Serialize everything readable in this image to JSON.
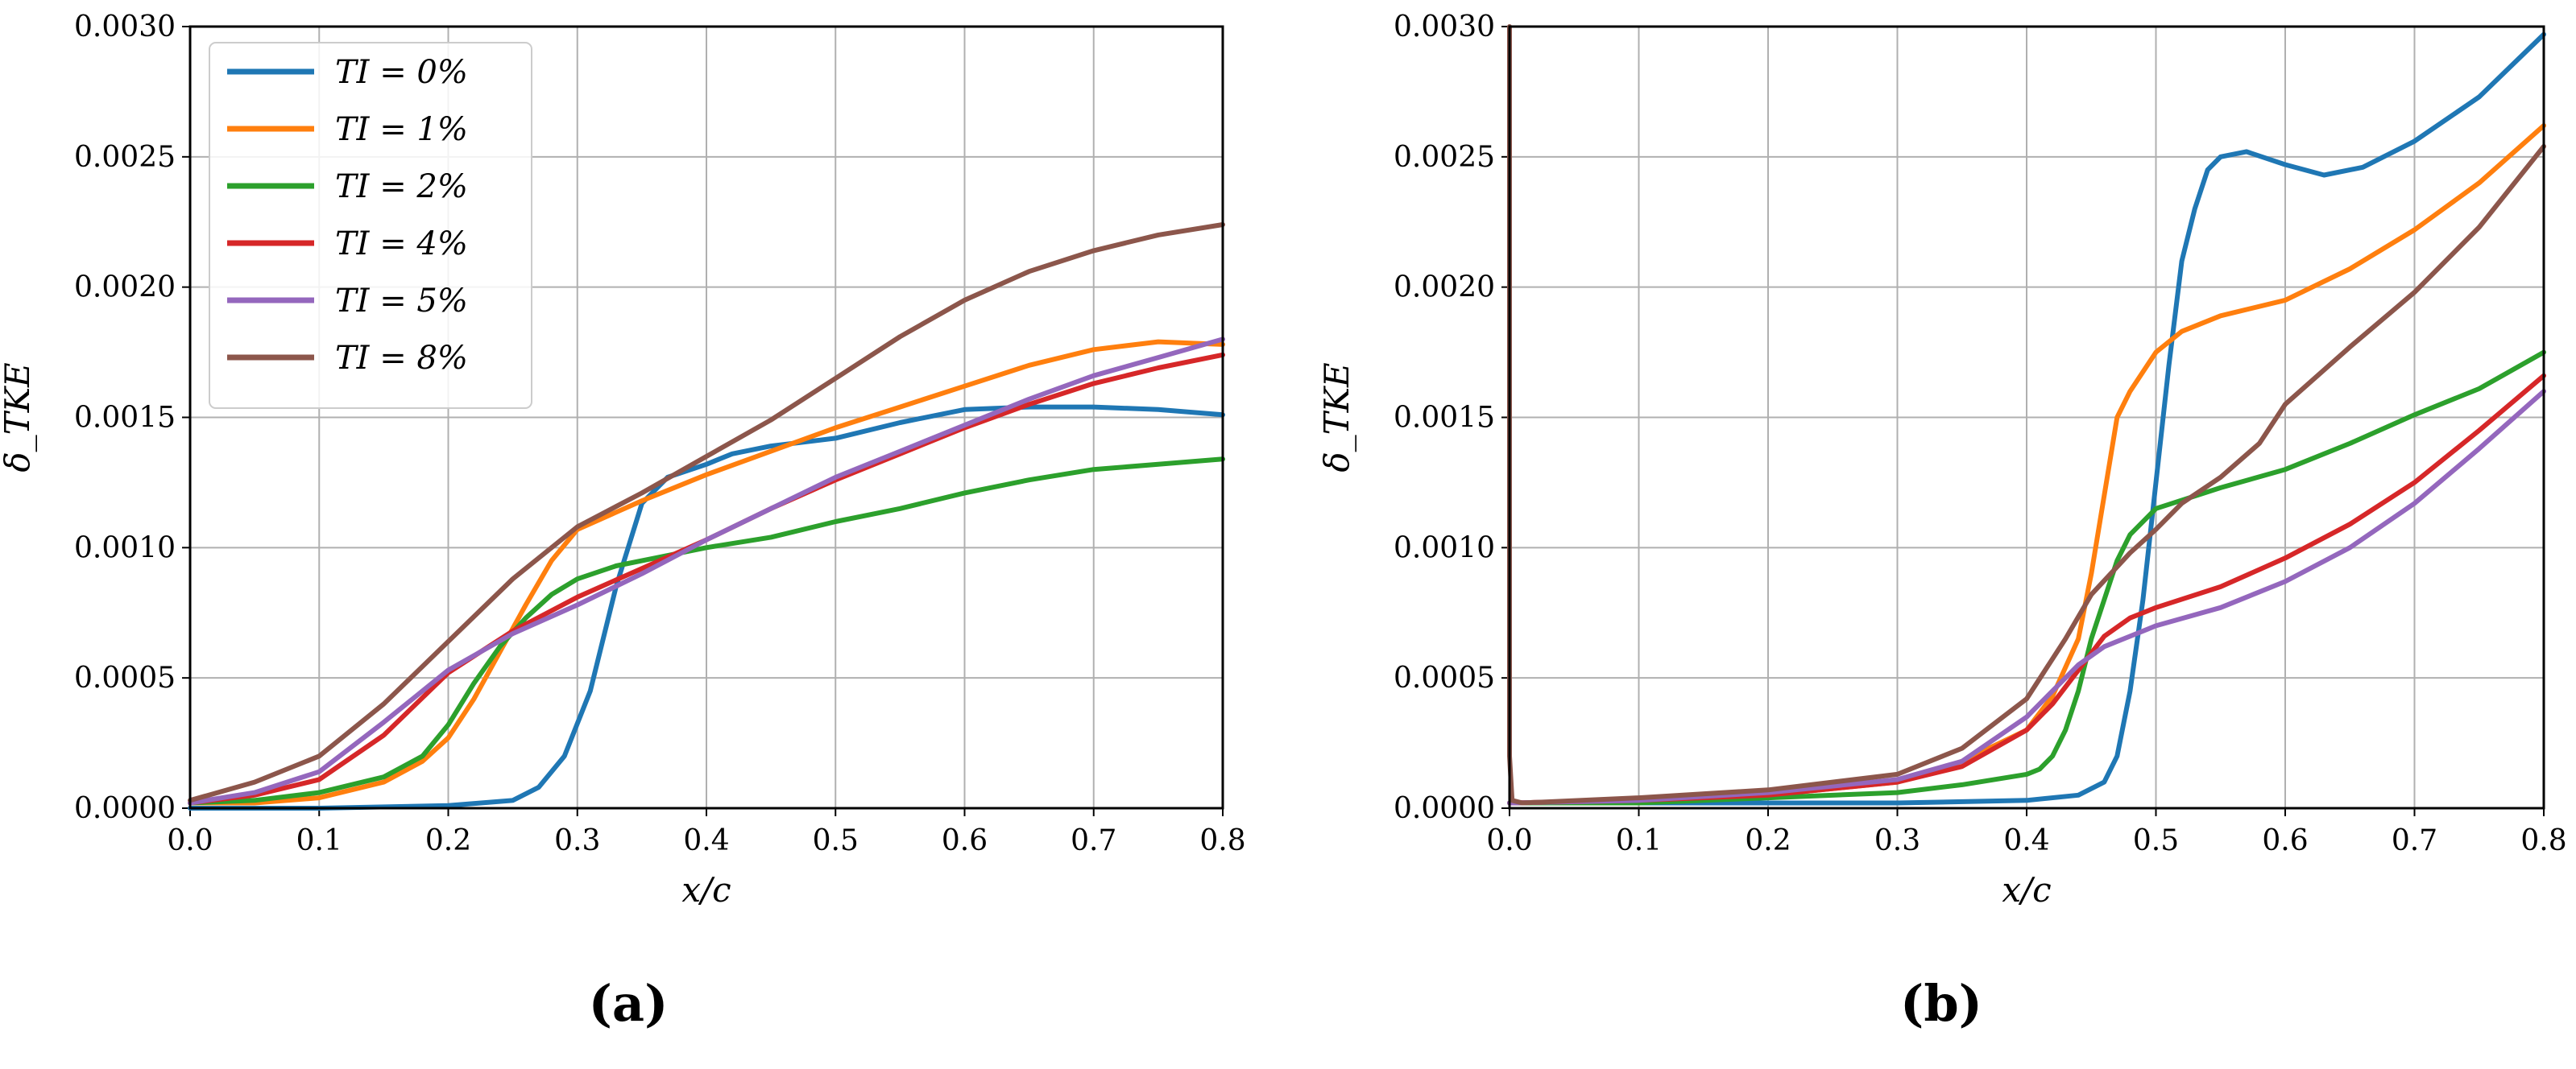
{
  "chart_data": [
    {
      "type": "line",
      "caption": "(a)",
      "xlabel": "x/c",
      "ylabel": "δ_TKE",
      "xlim": [
        0.0,
        0.8
      ],
      "ylim": [
        0.0,
        0.003
      ],
      "xticks": [
        "0.0",
        "0.1",
        "0.2",
        "0.3",
        "0.4",
        "0.5",
        "0.6",
        "0.7",
        "0.8"
      ],
      "yticks": [
        "0.0000",
        "0.0005",
        "0.0010",
        "0.0015",
        "0.0020",
        "0.0025",
        "0.0030"
      ],
      "grid": true,
      "legend": "top-left",
      "series": [
        {
          "name": "TI = 0%",
          "color": "#1f77b4",
          "x": [
            0.0,
            0.1,
            0.2,
            0.25,
            0.27,
            0.29,
            0.31,
            0.33,
            0.35,
            0.37,
            0.4,
            0.42,
            0.45,
            0.5,
            0.55,
            0.6,
            0.65,
            0.7,
            0.75,
            0.8
          ],
          "y": [
            0.0,
            0.0,
            1e-05,
            3e-05,
            8e-05,
            0.0002,
            0.00045,
            0.00085,
            0.00117,
            0.00127,
            0.00132,
            0.00136,
            0.00139,
            0.00142,
            0.00148,
            0.00153,
            0.00154,
            0.00154,
            0.00153,
            0.00151
          ]
        },
        {
          "name": "TI = 1%",
          "color": "#ff7f0e",
          "x": [
            0.0,
            0.05,
            0.1,
            0.15,
            0.18,
            0.2,
            0.22,
            0.24,
            0.26,
            0.28,
            0.3,
            0.35,
            0.4,
            0.45,
            0.5,
            0.55,
            0.6,
            0.65,
            0.7,
            0.75,
            0.8
          ],
          "y": [
            2e-05,
            2e-05,
            4e-05,
            0.0001,
            0.00018,
            0.00027,
            0.00042,
            0.0006,
            0.00078,
            0.00095,
            0.00107,
            0.00118,
            0.00128,
            0.00137,
            0.00146,
            0.00154,
            0.00162,
            0.0017,
            0.00176,
            0.00179,
            0.00178
          ]
        },
        {
          "name": "TI = 2%",
          "color": "#2ca02c",
          "x": [
            0.0,
            0.05,
            0.1,
            0.15,
            0.18,
            0.2,
            0.22,
            0.24,
            0.26,
            0.28,
            0.3,
            0.33,
            0.36,
            0.4,
            0.45,
            0.5,
            0.55,
            0.6,
            0.65,
            0.7,
            0.75,
            0.8
          ],
          "y": [
            2e-05,
            3e-05,
            6e-05,
            0.00012,
            0.0002,
            0.00032,
            0.00048,
            0.00062,
            0.00073,
            0.00082,
            0.00088,
            0.00093,
            0.00096,
            0.001,
            0.00104,
            0.0011,
            0.00115,
            0.00121,
            0.00126,
            0.0013,
            0.00132,
            0.00134
          ]
        },
        {
          "name": "TI = 4%",
          "color": "#d62728",
          "x": [
            0.0,
            0.05,
            0.1,
            0.15,
            0.2,
            0.25,
            0.3,
            0.35,
            0.4,
            0.45,
            0.5,
            0.55,
            0.6,
            0.65,
            0.7,
            0.75,
            0.8
          ],
          "y": [
            2e-05,
            5e-05,
            0.00011,
            0.00028,
            0.00052,
            0.00068,
            0.00081,
            0.00092,
            0.00103,
            0.00115,
            0.00126,
            0.00136,
            0.00146,
            0.00155,
            0.00163,
            0.00169,
            0.00174
          ]
        },
        {
          "name": "TI = 5%",
          "color": "#9467bd",
          "x": [
            0.0,
            0.05,
            0.1,
            0.15,
            0.2,
            0.25,
            0.3,
            0.35,
            0.4,
            0.45,
            0.5,
            0.55,
            0.6,
            0.65,
            0.7,
            0.75,
            0.8
          ],
          "y": [
            2e-05,
            6e-05,
            0.00014,
            0.00033,
            0.00053,
            0.00067,
            0.00078,
            0.0009,
            0.00103,
            0.00115,
            0.00127,
            0.00137,
            0.00147,
            0.00157,
            0.00166,
            0.00173,
            0.0018
          ]
        },
        {
          "name": "TI = 8%",
          "color": "#8c564b",
          "x": [
            0.0,
            0.05,
            0.1,
            0.15,
            0.2,
            0.25,
            0.3,
            0.35,
            0.4,
            0.45,
            0.5,
            0.55,
            0.6,
            0.65,
            0.7,
            0.75,
            0.8
          ],
          "y": [
            3e-05,
            0.0001,
            0.0002,
            0.0004,
            0.00064,
            0.00088,
            0.00108,
            0.00121,
            0.00135,
            0.00149,
            0.00165,
            0.00181,
            0.00195,
            0.00206,
            0.00214,
            0.0022,
            0.00224
          ]
        }
      ]
    },
    {
      "type": "line",
      "caption": "(b)",
      "xlabel": "x/c",
      "ylabel": "δ_TKE",
      "xlim": [
        0.0,
        0.8
      ],
      "ylim": [
        0.0,
        0.003
      ],
      "xticks": [
        "0.0",
        "0.1",
        "0.2",
        "0.3",
        "0.4",
        "0.5",
        "0.6",
        "0.7",
        "0.8"
      ],
      "yticks": [
        "0.0000",
        "0.0005",
        "0.0010",
        "0.0015",
        "0.0020",
        "0.0025",
        "0.0030"
      ],
      "grid": true,
      "legend": "none",
      "series": [
        {
          "name": "TI = 0%",
          "color": "#1f77b4",
          "x": [
            0.0,
            0.1,
            0.2,
            0.3,
            0.4,
            0.44,
            0.46,
            0.47,
            0.48,
            0.49,
            0.5,
            0.51,
            0.52,
            0.53,
            0.54,
            0.55,
            0.57,
            0.6,
            0.63,
            0.66,
            0.7,
            0.75,
            0.8
          ],
          "y": [
            2e-05,
            2e-05,
            2e-05,
            2e-05,
            3e-05,
            5e-05,
            0.0001,
            0.0002,
            0.00045,
            0.0008,
            0.00125,
            0.0017,
            0.0021,
            0.0023,
            0.00245,
            0.0025,
            0.00252,
            0.00247,
            0.00243,
            0.00246,
            0.00256,
            0.00273,
            0.00297
          ]
        },
        {
          "name": "TI = 1%",
          "color": "#ff7f0e",
          "x": [
            0.0,
            0.1,
            0.2,
            0.3,
            0.35,
            0.4,
            0.42,
            0.44,
            0.45,
            0.46,
            0.47,
            0.48,
            0.5,
            0.52,
            0.55,
            0.6,
            0.65,
            0.7,
            0.75,
            0.8
          ],
          "y": [
            2e-05,
            3e-05,
            5e-05,
            0.0001,
            0.00018,
            0.0003,
            0.00043,
            0.00065,
            0.0009,
            0.0012,
            0.0015,
            0.0016,
            0.00175,
            0.00183,
            0.00189,
            0.00195,
            0.00207,
            0.00222,
            0.0024,
            0.00262
          ]
        },
        {
          "name": "TI = 2%",
          "color": "#2ca02c",
          "x": [
            0.0,
            0.1,
            0.2,
            0.3,
            0.35,
            0.4,
            0.41,
            0.42,
            0.43,
            0.44,
            0.45,
            0.46,
            0.47,
            0.48,
            0.5,
            0.55,
            0.6,
            0.65,
            0.7,
            0.75,
            0.8
          ],
          "y": [
            2e-05,
            2e-05,
            4e-05,
            6e-05,
            9e-05,
            0.00013,
            0.00015,
            0.0002,
            0.0003,
            0.00045,
            0.00065,
            0.0008,
            0.00095,
            0.00105,
            0.00115,
            0.00123,
            0.0013,
            0.0014,
            0.00151,
            0.00161,
            0.00175
          ]
        },
        {
          "name": "TI = 4%",
          "color": "#d62728",
          "x": [
            0.0,
            0.1,
            0.2,
            0.3,
            0.35,
            0.4,
            0.42,
            0.44,
            0.46,
            0.48,
            0.5,
            0.55,
            0.6,
            0.65,
            0.7,
            0.75,
            0.8
          ],
          "y": [
            2e-05,
            3e-05,
            5e-05,
            0.0001,
            0.00016,
            0.0003,
            0.0004,
            0.00053,
            0.00066,
            0.00073,
            0.00077,
            0.00085,
            0.00096,
            0.00109,
            0.00125,
            0.00145,
            0.00166
          ]
        },
        {
          "name": "TI = 5%",
          "color": "#9467bd",
          "x": [
            0.0,
            0.1,
            0.2,
            0.3,
            0.35,
            0.4,
            0.42,
            0.44,
            0.46,
            0.48,
            0.5,
            0.55,
            0.6,
            0.65,
            0.7,
            0.75,
            0.8
          ],
          "y": [
            2e-05,
            3e-05,
            6e-05,
            0.00011,
            0.00018,
            0.00035,
            0.00045,
            0.00055,
            0.00062,
            0.00066,
            0.0007,
            0.00077,
            0.00087,
            0.001,
            0.00117,
            0.00138,
            0.0016
          ]
        },
        {
          "name": "TI = 8%",
          "color": "#8c564b",
          "x": [
            0.0,
            0.0,
            0.002,
            0.01,
            0.1,
            0.2,
            0.3,
            0.35,
            0.4,
            0.43,
            0.45,
            0.48,
            0.5,
            0.52,
            0.55,
            0.58,
            0.6,
            0.65,
            0.7,
            0.75,
            0.8
          ],
          "y": [
            0.003,
            0.0002,
            3e-05,
            2e-05,
            4e-05,
            7e-05,
            0.00013,
            0.00023,
            0.00042,
            0.00065,
            0.00082,
            0.00098,
            0.00107,
            0.00117,
            0.00127,
            0.0014,
            0.00155,
            0.00177,
            0.00198,
            0.00223,
            0.00254
          ]
        }
      ]
    }
  ]
}
